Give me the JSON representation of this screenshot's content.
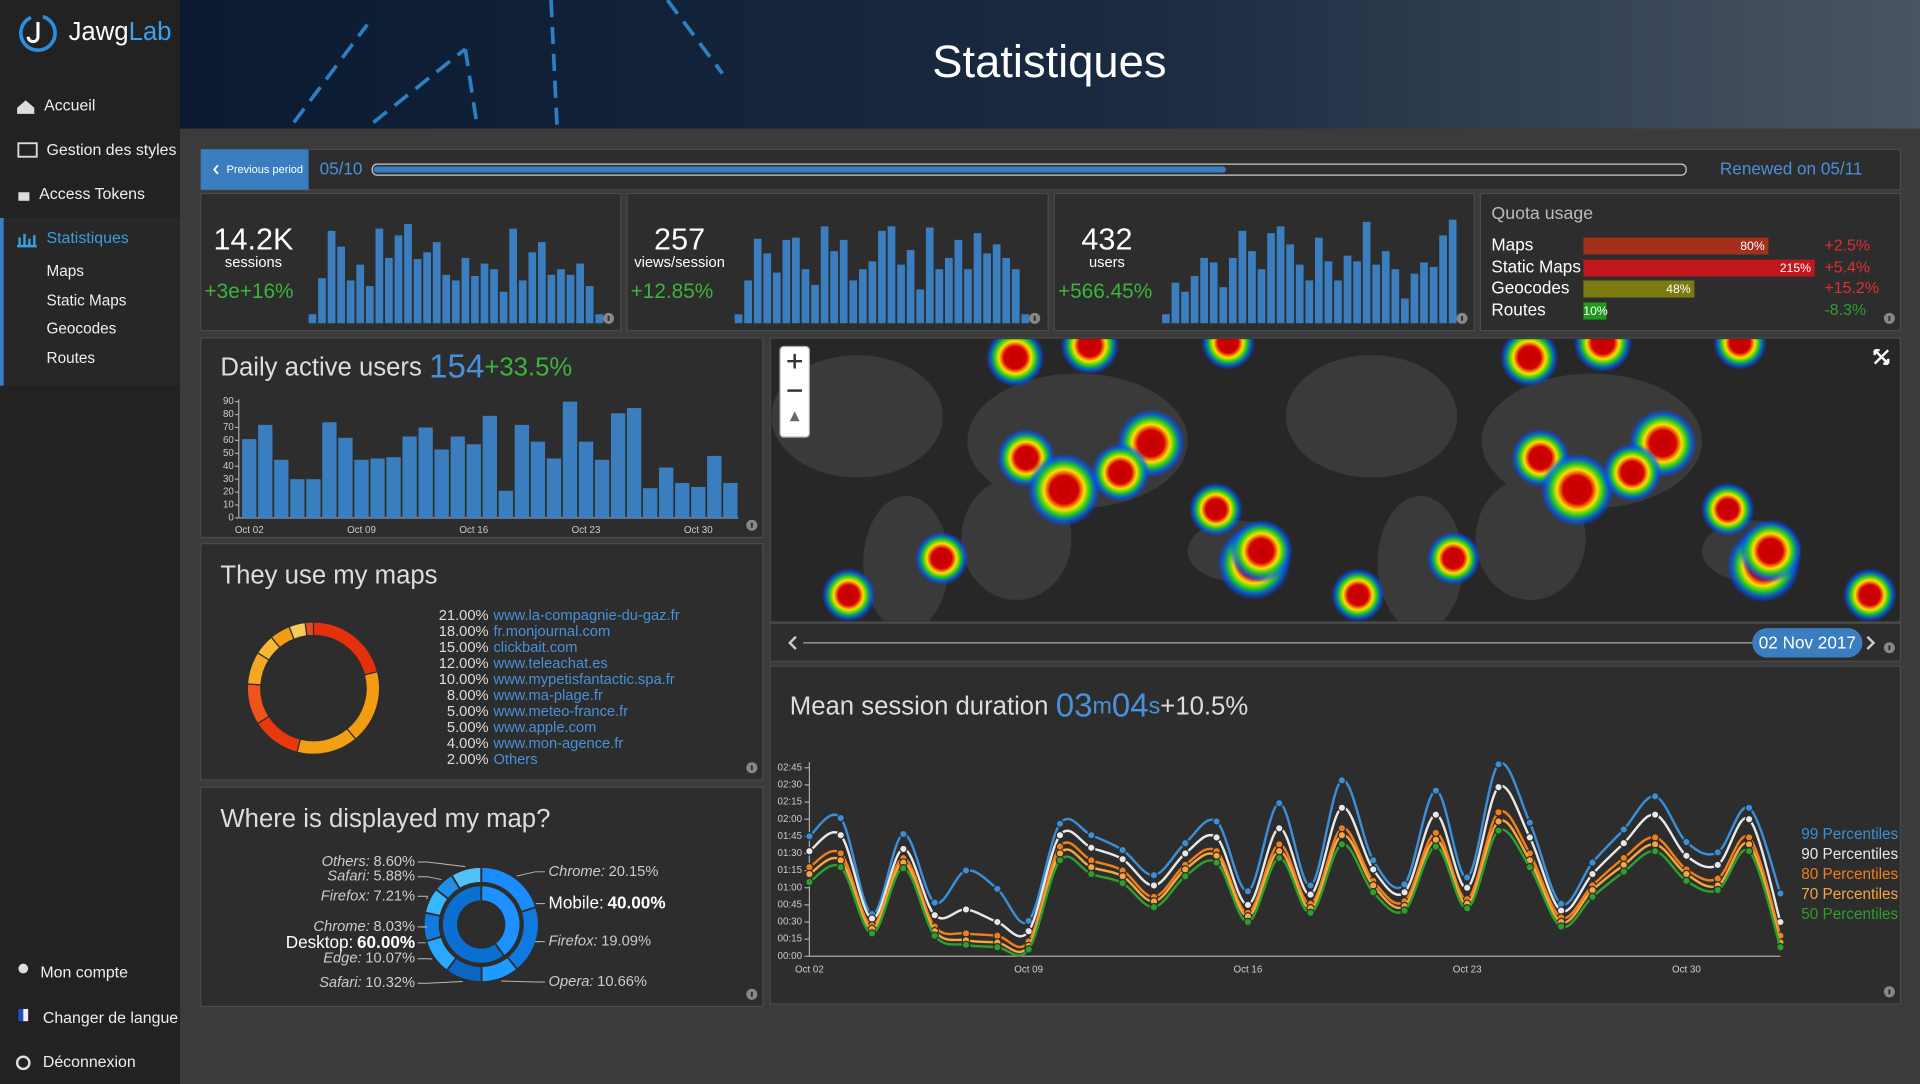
{
  "sidebar": {
    "logo": {
      "brand": "Jawg",
      "suffix": "Lab"
    },
    "nav": [
      "Accueil",
      "Gestion des styles",
      "Access Tokens",
      "Statistiques"
    ],
    "subnav": [
      "Maps",
      "Static Maps",
      "Geocodes",
      "Routes"
    ],
    "footer": [
      "Mon compte",
      "Changer de langue",
      "Déconnexion"
    ]
  },
  "header": {
    "title": "Statistiques"
  },
  "period": {
    "button": "Previous period",
    "start": "05/10",
    "progress": 65,
    "end": "Renewed on 05/11"
  },
  "kpis": [
    {
      "value": "14.2K",
      "label": "sessions",
      "change": "+3e+16%",
      "ylim": [
        0,
        100
      ],
      "bars": [
        8,
        40,
        82,
        68,
        38,
        52,
        33,
        84,
        58,
        78,
        88,
        57,
        63,
        72,
        43,
        38,
        58,
        42,
        53,
        48,
        28,
        84,
        38,
        63,
        72,
        43,
        48,
        43,
        53,
        33,
        8
      ]
    },
    {
      "value": "257",
      "label": "views/session",
      "change": "+12.85%",
      "ylim": [
        0,
        100
      ],
      "bars": [
        8,
        38,
        75,
        62,
        45,
        74,
        76,
        48,
        34,
        86,
        64,
        74,
        38,
        48,
        55,
        82,
        86,
        52,
        65,
        30,
        85,
        48,
        58,
        74,
        48,
        80,
        62,
        70,
        58,
        48,
        8
      ]
    },
    {
      "value": "432",
      "label": "users",
      "change": "+566.45%",
      "ylim": [
        0,
        100
      ],
      "bars": [
        8,
        36,
        28,
        42,
        58,
        54,
        32,
        58,
        82,
        64,
        48,
        80,
        86,
        70,
        52,
        38,
        76,
        55,
        38,
        60,
        55,
        90,
        52,
        64,
        48,
        22,
        44,
        54,
        50,
        78,
        92
      ]
    }
  ],
  "quota": {
    "title": "Quota usage",
    "rows": [
      {
        "name": "Maps",
        "value": 80,
        "value_label": "80%",
        "change": "+2.5%",
        "color": "#a3301c",
        "change_color": "#e03030"
      },
      {
        "name": "Static Maps",
        "value": 215,
        "value_label": "215%",
        "change": "+5.4%",
        "color": "#c0171c",
        "change_color": "#e03030"
      },
      {
        "name": "Geocodes",
        "value": 48,
        "value_label": "48%",
        "change": "+15.2%",
        "color": "#7a7a10",
        "change_color": "#e03030"
      },
      {
        "name": "Routes",
        "value": 10,
        "value_label": "10%",
        "change": "-8.3%",
        "color": "#1f9a1f",
        "change_color": "#2e9e2e"
      }
    ]
  },
  "map": {
    "date": "02 Nov 2017"
  },
  "chart_data": [
    {
      "type": "bar",
      "title": "Daily active users",
      "headline": "154",
      "change": "+33.5%",
      "color": "#3a7ebf",
      "categories": [
        "Oct 02",
        null,
        null,
        null,
        null,
        null,
        null,
        "Oct 09",
        null,
        null,
        null,
        null,
        null,
        null,
        "Oct 16",
        null,
        null,
        null,
        null,
        null,
        null,
        "Oct 23",
        null,
        null,
        null,
        null,
        null,
        null,
        "Oct 30",
        null,
        null
      ],
      "values": [
        61,
        72,
        45,
        30,
        30,
        74,
        62,
        45,
        46,
        47,
        63,
        70,
        53,
        63,
        57,
        79,
        21,
        72,
        59,
        46,
        90,
        59,
        45,
        81,
        85,
        23,
        39,
        27,
        24,
        48,
        27
      ],
      "ylim": [
        0,
        90
      ],
      "yticks": [
        0,
        10,
        20,
        30,
        40,
        50,
        60,
        70,
        80,
        90
      ]
    },
    {
      "type": "donut",
      "title": "They use my maps",
      "categories": [
        "www.la-compagnie-du-gaz.fr",
        "fr.monjournal.com",
        "clickbait.com",
        "www.teleachat.es",
        "www.mypetisfantactic.spa.fr",
        "www.ma-plage.fr",
        "www.meteo-france.fr",
        "www.apple.com",
        "www.mon-agence.fr",
        "Others"
      ],
      "values": [
        21,
        18,
        15,
        12,
        10,
        8,
        5,
        5,
        4,
        2
      ],
      "value_labels": [
        "21.00%",
        "18.00%",
        "15.00%",
        "12.00%",
        "10.00%",
        "8.00%",
        "5.00%",
        "5.00%",
        "4.00%",
        "2.00%"
      ],
      "colors": [
        "#e5300c",
        "#f39c12",
        "#f0a010",
        "#e8380c",
        "#f0541a",
        "#f5a623",
        "#f7b733",
        "#f39c12",
        "#f7c85a",
        "#e64a19"
      ]
    },
    {
      "type": "sunburst",
      "title": "Where is displayed my map?",
      "inner": {
        "categories": [
          "Mobile:",
          "Desktop:"
        ],
        "values": [
          40,
          60
        ],
        "value_labels": [
          "40.00%",
          "60.00%"
        ],
        "colors": [
          "#1e90ff",
          "#0a6fd0"
        ]
      },
      "outer": {
        "categories": [
          "Chrome:",
          "Firefox:",
          "Opera:",
          "Safari:",
          "Edge:",
          "Chrome:",
          "Firefox:",
          "Safari:",
          "Others:"
        ],
        "values": [
          20.15,
          19.09,
          10.66,
          10.32,
          10.07,
          8.03,
          7.21,
          5.88,
          8.6
        ],
        "value_labels": [
          "20.15%",
          "19.09%",
          "10.66%",
          "10.32%",
          "10.07%",
          "8.03%",
          "7.21%",
          "5.88%",
          "8.60%"
        ],
        "colors": [
          "#1a8cff",
          "#0f7ae0",
          "#1e9bff",
          "#0a66c2",
          "#2aa8ff",
          "#0f7ae0",
          "#38b6ff",
          "#1f8fe8",
          "#4fc3f7"
        ]
      }
    },
    {
      "type": "line",
      "title": "Mean session duration",
      "headline": [
        "03",
        "m",
        "04",
        "s"
      ],
      "change": "+10.5%",
      "categories": [
        "Oct 02",
        null,
        null,
        null,
        null,
        null,
        null,
        "Oct 09",
        null,
        null,
        null,
        null,
        null,
        null,
        "Oct 16",
        null,
        null,
        null,
        null,
        null,
        null,
        "Oct 23",
        null,
        null,
        null,
        null,
        null,
        null,
        "Oct 30",
        null,
        null,
        null
      ],
      "ylim": [
        0,
        170
      ],
      "yticks": [
        {
          "value": 0,
          "label": "00:00"
        },
        {
          "value": 15,
          "label": "00:15"
        },
        {
          "value": 30,
          "label": "00:30"
        },
        {
          "value": 45,
          "label": "00:45"
        },
        {
          "value": 60,
          "label": "01:00"
        },
        {
          "value": 75,
          "label": "01:15"
        },
        {
          "value": 90,
          "label": "01:30"
        },
        {
          "value": 105,
          "label": "01:45"
        },
        {
          "value": 120,
          "label": "02:00"
        },
        {
          "value": 135,
          "label": "02:15"
        },
        {
          "value": 150,
          "label": "02:30"
        },
        {
          "value": 165,
          "label": "02:45"
        }
      ],
      "series": [
        {
          "name": "99 Percentiles",
          "color": "#3a8fd8",
          "values": [
            105,
            121,
            37,
            107,
            47,
            75,
            59,
            31,
            116,
            106,
            93,
            71,
            99,
            118,
            57,
            134,
            62,
            154,
            84,
            63,
            145,
            69,
            168,
            117,
            46,
            82,
            111,
            140,
            100,
            91,
            130,
            55
          ]
        },
        {
          "name": "90 Percentiles",
          "color": "#e8e8e8",
          "values": [
            92,
            106,
            33,
            94,
            36,
            41,
            30,
            22,
            106,
            95,
            85,
            62,
            90,
            104,
            45,
            112,
            54,
            130,
            76,
            56,
            124,
            60,
            148,
            104,
            40,
            72,
            99,
            124,
            88,
            80,
            120,
            30
          ]
        },
        {
          "name": "80 Percentiles",
          "color": "#f07f1a",
          "values": [
            78,
            90,
            27,
            86,
            26,
            20,
            18,
            13,
            96,
            84,
            75,
            52,
            80,
            92,
            38,
            98,
            46,
            112,
            66,
            48,
            108,
            50,
            126,
            90,
            34,
            62,
            86,
            104,
            76,
            68,
            104,
            18
          ]
        },
        {
          "name": "70 Percentiles",
          "color": "#f5a640",
          "values": [
            72,
            84,
            24,
            82,
            22,
            14,
            12,
            9,
            90,
            78,
            70,
            48,
            76,
            88,
            35,
            92,
            42,
            106,
            62,
            44,
            102,
            46,
            118,
            84,
            30,
            58,
            80,
            98,
            72,
            62,
            98,
            12
          ]
        },
        {
          "name": "50 Percentiles",
          "color": "#2ca02c",
          "values": [
            65,
            78,
            20,
            77,
            18,
            10,
            8,
            6,
            84,
            72,
            64,
            43,
            70,
            82,
            30,
            86,
            38,
            98,
            56,
            40,
            96,
            42,
            110,
            78,
            26,
            52,
            74,
            92,
            66,
            58,
            92,
            8
          ]
        }
      ]
    }
  ]
}
